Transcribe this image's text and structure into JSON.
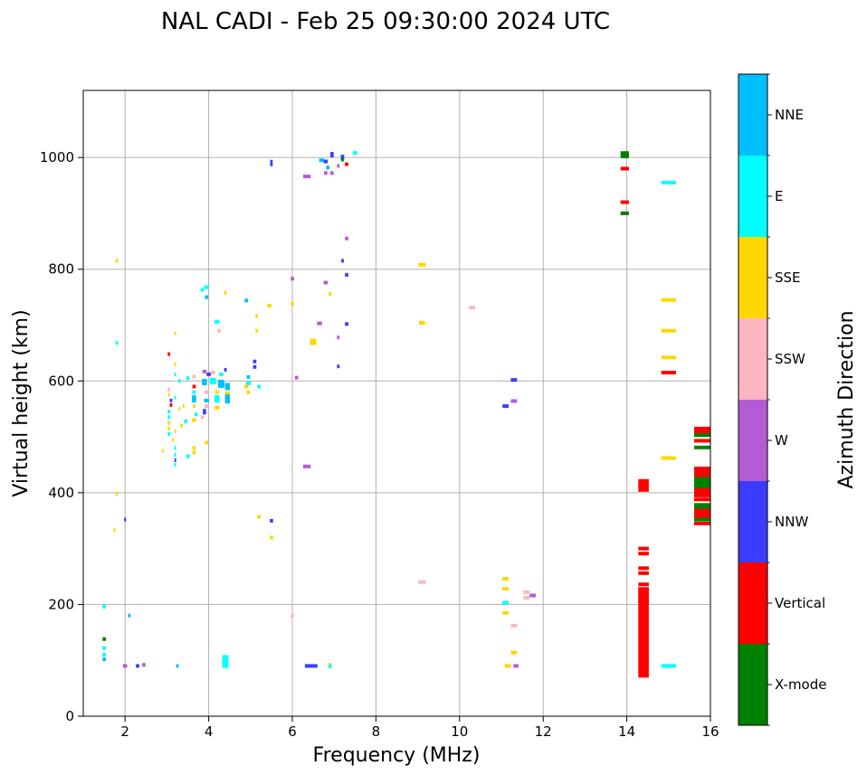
{
  "chart_data": {
    "type": "scatter",
    "title": "NAL CADI - Feb 25 09:30:00 2024 UTC",
    "xlabel": "Frequency (MHz)",
    "ylabel": "Virtual height (km)",
    "xlim": [
      1,
      16
    ],
    "ylim": [
      0,
      1120
    ],
    "xticks": [
      2,
      4,
      6,
      8,
      10,
      12,
      14,
      16
    ],
    "yticks": [
      0,
      200,
      400,
      600,
      800,
      1000
    ],
    "grid": true,
    "colorbar": {
      "label": "Azimuth Direction",
      "categories": [
        {
          "name": "X-mode",
          "color": "#008000"
        },
        {
          "name": "Vertical",
          "color": "#ff0000"
        },
        {
          "name": "NNW",
          "color": "#3c3cff"
        },
        {
          "name": "W",
          "color": "#b65bd6"
        },
        {
          "name": "SSW",
          "color": "#ffb6c1"
        },
        {
          "name": "SSE",
          "color": "#ffd700"
        },
        {
          "name": "E",
          "color": "#00ffff"
        },
        {
          "name": "NNE",
          "color": "#00bfff"
        }
      ]
    },
    "points": [
      {
        "f": 13.95,
        "h": 1008,
        "c": "X-mode",
        "w": 0.2
      },
      {
        "f": 13.95,
        "h": 1002,
        "c": "X-mode",
        "w": 0.2
      },
      {
        "f": 13.95,
        "h": 980,
        "c": "Vertical",
        "w": 0.2
      },
      {
        "f": 13.95,
        "h": 920,
        "c": "Vertical",
        "w": 0.2
      },
      {
        "f": 13.95,
        "h": 900,
        "c": "X-mode",
        "w": 0.2
      },
      {
        "f": 14.4,
        "h": 413,
        "c": "Vertical",
        "w": 0.25,
        "t": 14
      },
      {
        "f": 14.4,
        "h": 300,
        "c": "Vertical",
        "w": 0.25
      },
      {
        "f": 14.4,
        "h": 291,
        "c": "Vertical",
        "w": 0.25
      },
      {
        "f": 14.4,
        "h": 265,
        "c": "Vertical",
        "w": 0.25
      },
      {
        "f": 14.4,
        "h": 256,
        "c": "Vertical",
        "w": 0.25
      },
      {
        "f": 14.4,
        "h": 236,
        "c": "Vertical",
        "w": 0.25
      },
      {
        "f": 14.4,
        "h": 226,
        "c": "Vertical",
        "w": 0.25
      },
      {
        "f": 14.4,
        "h": 215,
        "c": "Vertical",
        "w": 0.25
      },
      {
        "f": 14.4,
        "h": 205,
        "c": "Vertical",
        "w": 0.25
      },
      {
        "f": 14.4,
        "h": 150,
        "c": "Vertical",
        "w": 0.25,
        "t": 100
      },
      {
        "f": 15.0,
        "h": 955,
        "c": "E",
        "w": 0.35
      },
      {
        "f": 15.0,
        "h": 745,
        "c": "SSE",
        "w": 0.35
      },
      {
        "f": 15.0,
        "h": 690,
        "c": "SSE",
        "w": 0.35
      },
      {
        "f": 15.0,
        "h": 642,
        "c": "SSE",
        "w": 0.35
      },
      {
        "f": 15.0,
        "h": 615,
        "c": "Vertical",
        "w": 0.35
      },
      {
        "f": 15.0,
        "h": 462,
        "c": "SSE",
        "w": 0.35
      },
      {
        "f": 15.0,
        "h": 90,
        "c": "E",
        "w": 0.35
      },
      {
        "f": 15.8,
        "h": 510,
        "c": "Vertical",
        "w": 0.38,
        "t": 10
      },
      {
        "f": 15.8,
        "h": 503,
        "c": "X-mode",
        "w": 0.38
      },
      {
        "f": 15.8,
        "h": 493,
        "c": "Vertical",
        "w": 0.38
      },
      {
        "f": 15.8,
        "h": 481,
        "c": "X-mode",
        "w": 0.38
      },
      {
        "f": 15.8,
        "h": 437,
        "c": "Vertical",
        "w": 0.38,
        "t": 12
      },
      {
        "f": 15.8,
        "h": 425,
        "c": "X-mode",
        "w": 0.38
      },
      {
        "f": 15.8,
        "h": 414,
        "c": "X-mode",
        "w": 0.38,
        "t": 10
      },
      {
        "f": 15.8,
        "h": 400,
        "c": "Vertical",
        "w": 0.38,
        "t": 10
      },
      {
        "f": 15.8,
        "h": 388,
        "c": "Vertical",
        "w": 0.38
      },
      {
        "f": 15.8,
        "h": 375,
        "c": "X-mode",
        "w": 0.38,
        "t": 8
      },
      {
        "f": 15.8,
        "h": 363,
        "c": "Vertical",
        "w": 0.38,
        "t": 10
      },
      {
        "f": 15.8,
        "h": 352,
        "c": "X-mode",
        "w": 0.38
      },
      {
        "f": 15.8,
        "h": 345,
        "c": "Vertical",
        "w": 0.38
      },
      {
        "f": 1.5,
        "h": 138,
        "c": "X-mode",
        "w": 0.08
      },
      {
        "f": 1.5,
        "h": 122,
        "c": "E",
        "w": 0.08
      },
      {
        "f": 1.5,
        "h": 110,
        "c": "E",
        "w": 0.08
      },
      {
        "f": 1.5,
        "h": 102,
        "c": "NNE",
        "w": 0.08
      },
      {
        "f": 1.5,
        "h": 196,
        "c": "E",
        "w": 0.08
      },
      {
        "f": 1.8,
        "h": 815,
        "c": "SSE",
        "w": 0.06
      },
      {
        "f": 1.8,
        "h": 668,
        "c": "E",
        "w": 0.06
      },
      {
        "f": 1.8,
        "h": 398,
        "c": "SSE",
        "w": 0.05
      },
      {
        "f": 1.75,
        "h": 333,
        "c": "SSE",
        "w": 0.05
      },
      {
        "f": 2.0,
        "h": 352,
        "c": "NNW",
        "w": 0.05
      },
      {
        "f": 2.1,
        "h": 180,
        "c": "NNE",
        "w": 0.06
      },
      {
        "f": 2.0,
        "h": 90,
        "c": "W",
        "w": 0.1
      },
      {
        "f": 2.3,
        "h": 90,
        "c": "NNW",
        "w": 0.08
      },
      {
        "f": 2.45,
        "h": 92,
        "c": "W",
        "w": 0.08
      },
      {
        "f": 3.25,
        "h": 90,
        "c": "NNE",
        "w": 0.06
      },
      {
        "f": 4.4,
        "h": 98,
        "c": "E",
        "w": 0.15,
        "t": 14
      },
      {
        "f": 6.45,
        "h": 90,
        "c": "NNW",
        "w": 0.3
      },
      {
        "f": 6.9,
        "h": 92,
        "c": "SSE",
        "w": 0.08
      },
      {
        "f": 6.9,
        "h": 89,
        "c": "E",
        "w": 0.08
      },
      {
        "f": 5.5,
        "h": 320,
        "c": "SSE",
        "w": 0.08
      },
      {
        "f": 5.5,
        "h": 350,
        "c": "NNW",
        "w": 0.08
      },
      {
        "f": 5.2,
        "h": 357,
        "c": "SSE",
        "w": 0.08
      },
      {
        "f": 6.0,
        "h": 180,
        "c": "SSW",
        "w": 0.08
      },
      {
        "f": 6.35,
        "h": 447,
        "c": "W",
        "w": 0.18
      },
      {
        "f": 9.1,
        "h": 240,
        "c": "SSW",
        "w": 0.18
      },
      {
        "f": 9.1,
        "h": 808,
        "c": "SSE",
        "w": 0.18
      },
      {
        "f": 9.1,
        "h": 704,
        "c": "SSE",
        "w": 0.15
      },
      {
        "f": 10.3,
        "h": 731,
        "c": "SSW",
        "w": 0.15
      },
      {
        "f": 11.1,
        "h": 246,
        "c": "SSE",
        "w": 0.15
      },
      {
        "f": 11.1,
        "h": 228,
        "c": "SSE",
        "w": 0.15
      },
      {
        "f": 11.1,
        "h": 203,
        "c": "E",
        "w": 0.15
      },
      {
        "f": 11.1,
        "h": 185,
        "c": "SSE",
        "w": 0.15
      },
      {
        "f": 11.3,
        "h": 162,
        "c": "SSW",
        "w": 0.15
      },
      {
        "f": 11.3,
        "h": 114,
        "c": "SSE",
        "w": 0.15
      },
      {
        "f": 11.15,
        "h": 90,
        "c": "SSE",
        "w": 0.15
      },
      {
        "f": 11.35,
        "h": 90,
        "c": "W",
        "w": 0.12
      },
      {
        "f": 11.6,
        "h": 222,
        "c": "SSW",
        "w": 0.15
      },
      {
        "f": 11.6,
        "h": 212,
        "c": "SSW",
        "w": 0.15
      },
      {
        "f": 11.75,
        "h": 216,
        "c": "W",
        "w": 0.15
      },
      {
        "f": 11.1,
        "h": 555,
        "c": "NNW",
        "w": 0.15
      },
      {
        "f": 11.3,
        "h": 564,
        "c": "W",
        "w": 0.15
      },
      {
        "f": 11.3,
        "h": 602,
        "c": "NNW",
        "w": 0.15
      },
      {
        "f": 5.5,
        "h": 990,
        "c": "NNW",
        "w": 0.06,
        "t": 7
      },
      {
        "f": 6.35,
        "h": 966,
        "c": "W",
        "w": 0.18
      },
      {
        "f": 6.7,
        "h": 995,
        "c": "NNE",
        "w": 0.12
      },
      {
        "f": 6.8,
        "h": 993,
        "c": "NNW",
        "w": 0.1
      },
      {
        "f": 6.85,
        "h": 982,
        "c": "NNE",
        "w": 0.08
      },
      {
        "f": 6.95,
        "h": 1005,
        "c": "NNW",
        "w": 0.08,
        "t": 6
      },
      {
        "f": 6.8,
        "h": 972,
        "c": "W",
        "w": 0.08
      },
      {
        "f": 6.95,
        "h": 972,
        "c": "W",
        "w": 0.08
      },
      {
        "f": 7.1,
        "h": 985,
        "c": "W",
        "w": 0.06
      },
      {
        "f": 7.2,
        "h": 1000,
        "c": "NNW",
        "w": 0.08,
        "t": 6
      },
      {
        "f": 7.2,
        "h": 996,
        "c": "X-mode",
        "w": 0.06
      },
      {
        "f": 7.3,
        "h": 988,
        "c": "Vertical",
        "w": 0.08
      },
      {
        "f": 7.5,
        "h": 1008,
        "c": "E",
        "w": 0.1
      },
      {
        "f": 7.3,
        "h": 855,
        "c": "W",
        "w": 0.08
      },
      {
        "f": 7.2,
        "h": 815,
        "c": "NNW",
        "w": 0.06
      },
      {
        "f": 7.3,
        "h": 790,
        "c": "NNW",
        "w": 0.08
      },
      {
        "f": 6.8,
        "h": 776,
        "c": "W",
        "w": 0.1
      },
      {
        "f": 6.9,
        "h": 756,
        "c": "SSE",
        "w": 0.06
      },
      {
        "f": 6.0,
        "h": 783,
        "c": "W",
        "w": 0.08
      },
      {
        "f": 6.0,
        "h": 738,
        "c": "SSE",
        "w": 0.08
      },
      {
        "f": 6.65,
        "h": 703,
        "c": "W",
        "w": 0.12
      },
      {
        "f": 7.3,
        "h": 702,
        "c": "NNW",
        "w": 0.08
      },
      {
        "f": 7.1,
        "h": 678,
        "c": "W",
        "w": 0.06
      },
      {
        "f": 6.5,
        "h": 670,
        "c": "SSE",
        "w": 0.15,
        "t": 7
      },
      {
        "f": 7.1,
        "h": 626,
        "c": "NNW",
        "w": 0.06
      },
      {
        "f": 6.1,
        "h": 606,
        "c": "W",
        "w": 0.08
      },
      {
        "f": 5.1,
        "h": 635,
        "c": "NNW",
        "w": 0.08
      },
      {
        "f": 5.1,
        "h": 625,
        "c": "NNW",
        "w": 0.08
      },
      {
        "f": 5.2,
        "h": 590,
        "c": "E",
        "w": 0.08
      },
      {
        "f": 5.15,
        "h": 716,
        "c": "SSE",
        "w": 0.06
      },
      {
        "f": 5.15,
        "h": 690,
        "c": "SSE",
        "w": 0.06
      },
      {
        "f": 5.45,
        "h": 735,
        "c": "SSE",
        "w": 0.1
      },
      {
        "f": 4.9,
        "h": 744,
        "c": "NNE",
        "w": 0.08
      },
      {
        "f": 4.4,
        "h": 758,
        "c": "SSE",
        "w": 0.06
      },
      {
        "f": 4.2,
        "h": 706,
        "c": "E",
        "w": 0.12
      },
      {
        "f": 4.25,
        "h": 690,
        "c": "SSW",
        "w": 0.08
      },
      {
        "f": 3.95,
        "h": 768,
        "c": "E",
        "w": 0.12
      },
      {
        "f": 3.85,
        "h": 763,
        "c": "E",
        "w": 0.08
      },
      {
        "f": 3.95,
        "h": 750,
        "c": "NNE",
        "w": 0.08
      },
      {
        "f": 3.2,
        "h": 685,
        "c": "SSE",
        "w": 0.04
      },
      {
        "f": 3.05,
        "h": 648,
        "c": "Vertical",
        "w": 0.06
      },
      {
        "f": 3.2,
        "h": 630,
        "c": "SSE",
        "w": 0.04
      },
      {
        "f": 3.2,
        "h": 612,
        "c": "E",
        "w": 0.04
      },
      {
        "f": 3.3,
        "h": 600,
        "c": "E",
        "w": 0.06
      },
      {
        "f": 3.5,
        "h": 605,
        "c": "E",
        "w": 0.08
      },
      {
        "f": 3.65,
        "h": 608,
        "c": "SSW",
        "w": 0.08
      },
      {
        "f": 3.65,
        "h": 590,
        "c": "Vertical",
        "w": 0.08
      },
      {
        "f": 3.9,
        "h": 617,
        "c": "W",
        "w": 0.1
      },
      {
        "f": 4.0,
        "h": 612,
        "c": "NNW",
        "w": 0.1
      },
      {
        "f": 4.1,
        "h": 615,
        "c": "SSW",
        "w": 0.1
      },
      {
        "f": 4.3,
        "h": 612,
        "c": "E",
        "w": 0.1
      },
      {
        "f": 4.4,
        "h": 620,
        "c": "NNW",
        "w": 0.06
      },
      {
        "f": 3.9,
        "h": 598,
        "c": "NNE",
        "w": 0.12,
        "t": 7
      },
      {
        "f": 4.1,
        "h": 600,
        "c": "E",
        "w": 0.15,
        "t": 7
      },
      {
        "f": 4.3,
        "h": 595,
        "c": "NNE",
        "w": 0.15,
        "t": 9
      },
      {
        "f": 4.45,
        "h": 590,
        "c": "NNE",
        "w": 0.12,
        "t": 8
      },
      {
        "f": 4.95,
        "h": 596,
        "c": "E",
        "w": 0.12
      },
      {
        "f": 4.95,
        "h": 607,
        "c": "NNE",
        "w": 0.08
      },
      {
        "f": 4.9,
        "h": 590,
        "c": "SSE",
        "w": 0.1
      },
      {
        "f": 4.95,
        "h": 580,
        "c": "SSE",
        "w": 0.08
      },
      {
        "f": 3.65,
        "h": 580,
        "c": "E",
        "w": 0.08
      },
      {
        "f": 3.95,
        "h": 580,
        "c": "SSW",
        "w": 0.1
      },
      {
        "f": 4.2,
        "h": 580,
        "c": "SSE",
        "w": 0.1
      },
      {
        "f": 4.45,
        "h": 578,
        "c": "SSE",
        "w": 0.12
      },
      {
        "f": 3.65,
        "h": 568,
        "c": "NNE",
        "w": 0.1,
        "t": 8
      },
      {
        "f": 3.95,
        "h": 565,
        "c": "NNE",
        "w": 0.12
      },
      {
        "f": 4.2,
        "h": 568,
        "c": "E",
        "w": 0.12,
        "t": 8
      },
      {
        "f": 4.45,
        "h": 568,
        "c": "NNE",
        "w": 0.12,
        "t": 10
      },
      {
        "f": 3.95,
        "h": 555,
        "c": "SSW",
        "w": 0.1
      },
      {
        "f": 4.2,
        "h": 552,
        "c": "SSE",
        "w": 0.12
      },
      {
        "f": 3.65,
        "h": 555,
        "c": "SSE",
        "w": 0.06
      },
      {
        "f": 3.4,
        "h": 555,
        "c": "SSE",
        "w": 0.04
      },
      {
        "f": 3.1,
        "h": 565,
        "c": "NNW",
        "w": 0.06
      },
      {
        "f": 3.1,
        "h": 557,
        "c": "Vertical",
        "w": 0.06
      },
      {
        "f": 3.3,
        "h": 550,
        "c": "SSE",
        "w": 0.04
      },
      {
        "f": 3.05,
        "h": 545,
        "c": "E",
        "w": 0.06
      },
      {
        "f": 3.05,
        "h": 535,
        "c": "E",
        "w": 0.06
      },
      {
        "f": 3.05,
        "h": 525,
        "c": "SSE",
        "w": 0.06
      },
      {
        "f": 3.05,
        "h": 515,
        "c": "SSE",
        "w": 0.06
      },
      {
        "f": 3.05,
        "h": 505,
        "c": "E",
        "w": 0.06
      },
      {
        "f": 3.2,
        "h": 510,
        "c": "SSE",
        "w": 0.04
      },
      {
        "f": 3.15,
        "h": 495,
        "c": "SSE",
        "w": 0.04
      },
      {
        "f": 3.2,
        "h": 480,
        "c": "E",
        "w": 0.04
      },
      {
        "f": 3.35,
        "h": 520,
        "c": "SSE",
        "w": 0.06
      },
      {
        "f": 3.45,
        "h": 528,
        "c": "E",
        "w": 0.08
      },
      {
        "f": 3.65,
        "h": 530,
        "c": "SSE",
        "w": 0.1
      },
      {
        "f": 3.7,
        "h": 540,
        "c": "E",
        "w": 0.08
      },
      {
        "f": 3.9,
        "h": 545,
        "c": "NNW",
        "w": 0.08,
        "t": 6
      },
      {
        "f": 3.85,
        "h": 535,
        "c": "SSW",
        "w": 0.08
      },
      {
        "f": 3.65,
        "h": 480,
        "c": "SSE",
        "w": 0.08
      },
      {
        "f": 3.65,
        "h": 472,
        "c": "SSE",
        "w": 0.08
      },
      {
        "f": 3.95,
        "h": 490,
        "c": "SSE",
        "w": 0.08
      },
      {
        "f": 3.5,
        "h": 465,
        "c": "E",
        "w": 0.08
      },
      {
        "f": 3.2,
        "h": 468,
        "c": "E",
        "w": 0.04
      },
      {
        "f": 3.2,
        "h": 458,
        "c": "NNW",
        "w": 0.04
      },
      {
        "f": 3.2,
        "h": 450,
        "c": "E",
        "w": 0.04
      },
      {
        "f": 2.9,
        "h": 475,
        "c": "SSE",
        "w": 0.04
      },
      {
        "f": 3.05,
        "h": 585,
        "c": "SSW",
        "w": 0.06
      },
      {
        "f": 3.05,
        "h": 575,
        "c": "SSE",
        "w": 0.04
      },
      {
        "f": 3.2,
        "h": 570,
        "c": "E",
        "w": 0.04
      }
    ]
  }
}
